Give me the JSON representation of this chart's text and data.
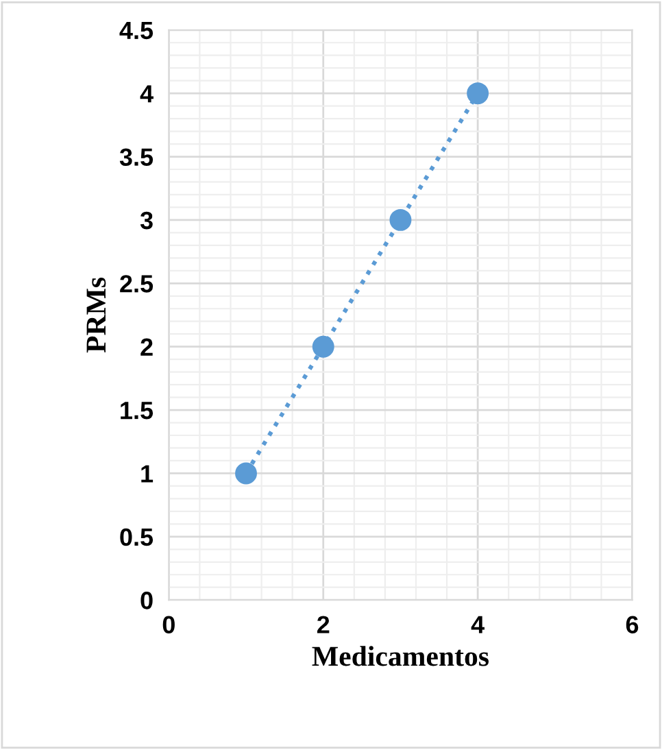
{
  "chart_data": {
    "type": "scatter",
    "xlabel": "Medicamentos",
    "ylabel": "PRMs",
    "series": [
      {
        "color": "#5b9bd5",
        "x": [
          1,
          2,
          3,
          4
        ],
        "values": [
          1,
          2,
          3,
          4
        ],
        "marker": "circle"
      },
      {
        "type": "line",
        "color": "#5b9bd5",
        "x": [
          1,
          4
        ],
        "values": [
          1,
          4
        ],
        "line_style": "dotted",
        "marker": "none"
      }
    ],
    "xlim": [
      0,
      6
    ],
    "xticks": [
      0,
      2,
      4,
      6
    ],
    "ylim": [
      0,
      4.5
    ],
    "yticks": [
      0,
      0.5,
      1,
      1.5,
      2,
      2.5,
      3,
      3.5,
      4,
      4.5
    ],
    "grid": true,
    "legend": false
  }
}
